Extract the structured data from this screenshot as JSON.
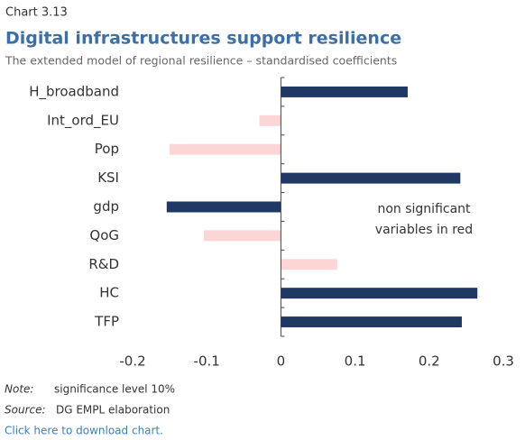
{
  "chart_label": "Chart 3.13",
  "chart_data": {
    "type": "hbar",
    "title": "Digital infrastructures support resilience",
    "subtitle": "The extended model of regional resilience – standardised coefficients",
    "categories": [
      "H_broadband",
      "Int_ord_EU",
      "Pop",
      "KSI",
      "gdp",
      "QoG",
      "R&D",
      "HC",
      "TFP"
    ],
    "series": [
      {
        "values": [
          0.171,
          -0.029,
          -0.15,
          0.242,
          -0.154,
          -0.104,
          0.076,
          0.265,
          0.244
        ],
        "colors": [
          "#1f3864",
          "#fcd6d6",
          "#fcd6d6",
          "#1f3864",
          "#1f3864",
          "#fcd6d6",
          "#fcd6d6",
          "#1f3864",
          "#1f3864"
        ]
      }
    ],
    "xlim": [
      -0.2,
      0.3
    ],
    "xticks": [
      -0.2,
      -0.1,
      0,
      0.1,
      0.2,
      0.3
    ],
    "annotation": [
      "non significant",
      "variables in red"
    ]
  },
  "note": {
    "label": "Note:",
    "text": "significance level 10%"
  },
  "source": {
    "label": "Source:",
    "text": "DG EMPL elaboration"
  },
  "link": "Click here to download chart."
}
